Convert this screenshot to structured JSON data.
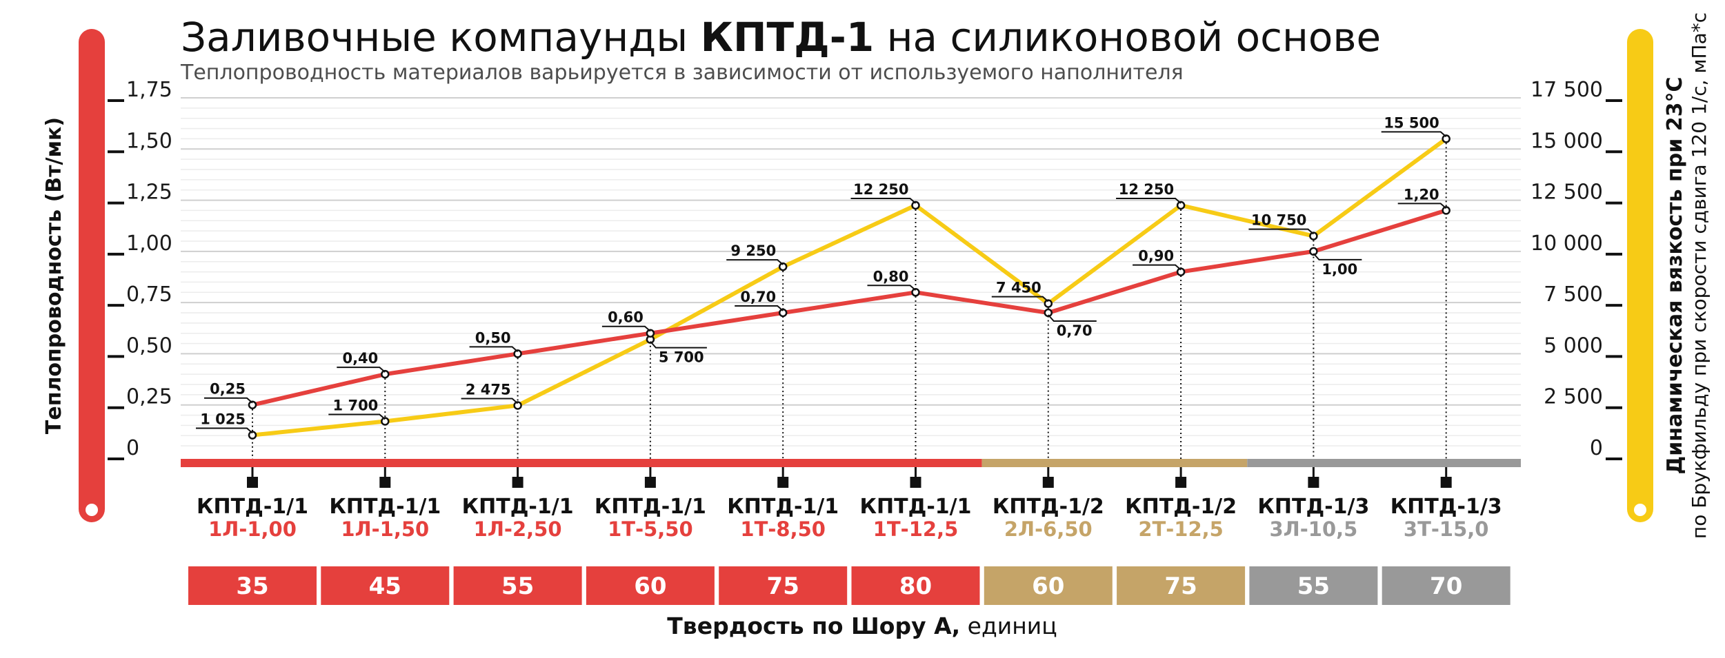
{
  "title": {
    "prefix": "Заливочные компаунды ",
    "strong": "КПТД-1",
    "suffix": " на силиконовой основе"
  },
  "subtitle": "Теплопроводность материалов варьируется в зависимости от используемого наполнителя",
  "colors": {
    "red": "#e5403d",
    "yellow": "#f7cb16",
    "tan": "#c5a468",
    "gray": "#999999"
  },
  "left_axis": {
    "title": "Теплопроводность (Вт/мк)",
    "ticks": [
      "0",
      "0,25",
      "0,50",
      "0,75",
      "1,00",
      "1,25",
      "1,50",
      "1,75"
    ]
  },
  "right_axis": {
    "title": "Динамическая вязкость при 23°С",
    "subtitle": "по Брукфильду при скорости сдвига 120 1/с, мПа*с",
    "ticks": [
      "0",
      "2 500",
      "5 000",
      "7 500",
      "10 000",
      "12 500",
      "15 000",
      "17 500"
    ]
  },
  "bottom_title": {
    "strong": "Твердость по Шору А,",
    "normal": " единиц"
  },
  "chart_data": {
    "type": "line",
    "title": "Заливочные компаунды КПТД-1 на силиконовой основе",
    "subtitle": "Теплопроводность материалов варьируется в зависимости от используемого наполнителя",
    "categories": [
      {
        "name": "КПТД-1/1",
        "code": "1Л-1,00",
        "group": "1",
        "hardness": "35"
      },
      {
        "name": "КПТД-1/1",
        "code": "1Л-1,50",
        "group": "1",
        "hardness": "45"
      },
      {
        "name": "КПТД-1/1",
        "code": "1Л-2,50",
        "group": "1",
        "hardness": "55"
      },
      {
        "name": "КПТД-1/1",
        "code": "1Т-5,50",
        "group": "1",
        "hardness": "60"
      },
      {
        "name": "КПТД-1/1",
        "code": "1Т-8,50",
        "group": "1",
        "hardness": "75"
      },
      {
        "name": "КПТД-1/1",
        "code": "1Т-12,5",
        "group": "1",
        "hardness": "80"
      },
      {
        "name": "КПТД-1/2",
        "code": "2Л-6,50",
        "group": "2",
        "hardness": "60"
      },
      {
        "name": "КПТД-1/2",
        "code": "2Т-12,5",
        "group": "2",
        "hardness": "75"
      },
      {
        "name": "КПТД-1/3",
        "code": "3Л-10,5",
        "group": "3",
        "hardness": "55"
      },
      {
        "name": "КПТД-1/3",
        "code": "3Т-15,0",
        "group": "3",
        "hardness": "70"
      }
    ],
    "series": [
      {
        "name": "Теплопроводность (Вт/мк)",
        "axis": "left",
        "color": "#e5403d",
        "values": [
          0.25,
          0.4,
          0.5,
          0.6,
          0.7,
          0.8,
          0.7,
          0.9,
          1.0,
          1.2
        ],
        "labels": [
          "0,25",
          "0,40",
          "0,50",
          "0,60",
          "0,70",
          "0,80",
          "0,70",
          "0,90",
          "1,00",
          "1,20"
        ],
        "label_side": [
          "above",
          "above",
          "above",
          "above",
          "above",
          "above",
          "below",
          "above",
          "below",
          "above"
        ]
      },
      {
        "name": "Динамическая вязкость при 23°С, мПа*с",
        "axis": "right",
        "color": "#f7cb16",
        "values": [
          1025,
          1700,
          2475,
          5700,
          9250,
          12250,
          7450,
          12250,
          10750,
          15500
        ],
        "labels": [
          "1 025",
          "1 700",
          "2 475",
          "5 700",
          "9 250",
          "12 250",
          "7 450",
          "12 250",
          "10 750",
          "15 500"
        ],
        "label_side": [
          "above",
          "above",
          "above",
          "below",
          "above",
          "above",
          "above",
          "above",
          "above",
          "above"
        ]
      }
    ],
    "ylim_left": [
      0,
      1.75
    ],
    "ylim_right": [
      0,
      17500
    ],
    "xlabel": "Твердость по Шору А, единиц",
    "ylabel_left": "Теплопроводность (Вт/мк)",
    "ylabel_right": "Динамическая вязкость при 23°С по Брукфильду при скорости сдвига 120 1/с, мПа*с",
    "grid": true
  }
}
